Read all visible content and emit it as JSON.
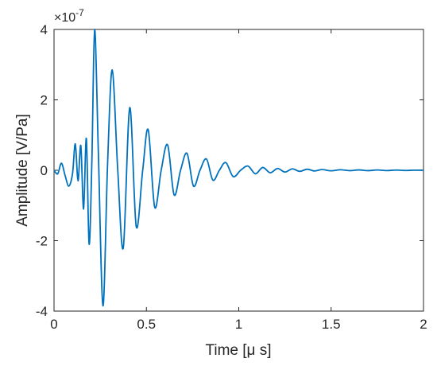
{
  "chart_data": {
    "type": "line",
    "title": "",
    "xlabel": "Time [μ s]",
    "ylabel": "Amplitude [V/Pa]",
    "xlim": [
      0,
      2
    ],
    "ylim": [
      -4e-07,
      4e-07
    ],
    "x_ticks": [
      "0",
      "0.5",
      "1",
      "1.5",
      "2"
    ],
    "y_ticks": [
      "-4",
      "-2",
      "0",
      "2",
      "4"
    ],
    "y_exponent": {
      "base": "×10",
      "power": "-7"
    },
    "grid": false,
    "legend": "none",
    "series": [
      {
        "color": "#0072BD",
        "x": [
          0,
          0.02,
          0.04,
          0.06,
          0.08,
          0.1,
          0.115,
          0.13,
          0.145,
          0.16,
          0.175,
          0.19,
          0.205,
          0.22,
          0.24,
          0.265,
          0.29,
          0.315,
          0.345,
          0.375,
          0.41,
          0.445,
          0.48,
          0.51,
          0.545,
          0.58,
          0.615,
          0.65,
          0.685,
          0.72,
          0.755,
          0.79,
          0.825,
          0.86,
          0.895,
          0.93,
          0.97,
          1.01,
          1.05,
          1.09,
          1.13,
          1.17,
          1.21,
          1.25,
          1.29,
          1.33,
          1.37,
          1.41,
          1.45,
          1.5,
          1.55,
          1.6,
          1.65,
          1.7,
          1.75,
          1.8,
          1.85,
          1.9,
          1.95,
          2.0
        ],
        "y": [
          0,
          -1e-08,
          2e-08,
          -1.5e-08,
          -4.5e-08,
          -1e-08,
          7.5e-08,
          -3e-08,
          7e-08,
          -1.1e-07,
          9e-08,
          -2.1e-07,
          3e-08,
          4e-07,
          5e-08,
          -3.85e-07,
          2e-08,
          2.85e-07,
          0.0,
          -2.2e-07,
          1.78e-07,
          -1.6e-07,
          0.0,
          1.15e-07,
          -1.05e-07,
          0.0,
          7.2e-08,
          -7e-08,
          0.0,
          4.8e-08,
          -4.5e-08,
          0.0,
          3.2e-08,
          -2.8e-08,
          0.0,
          2.2e-08,
          -1.8e-08,
          0.0,
          1.2e-08,
          -1e-08,
          8e-09,
          -7e-09,
          5e-09,
          -5e-09,
          4e-09,
          -3e-09,
          3e-09,
          -2e-09,
          2e-09,
          -1.5e-09,
          1.5e-09,
          -1e-09,
          1e-09,
          -1e-09,
          8e-10,
          -8e-10,
          5e-10,
          -5e-10,
          3e-10,
          0.0
        ]
      }
    ]
  }
}
